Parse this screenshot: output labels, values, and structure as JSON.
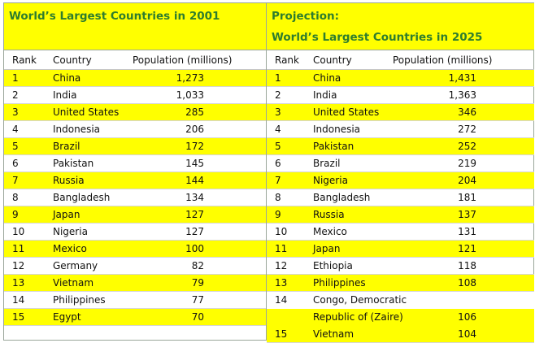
{
  "left": {
    "title": "World’s Largest Countries in 2001",
    "headers": {
      "rank": "Rank",
      "country": "Country",
      "population": "Population (millions)"
    },
    "rows": [
      {
        "rank": "1",
        "country": "China",
        "population": "1,273"
      },
      {
        "rank": "2",
        "country": "India",
        "population": "1,033"
      },
      {
        "rank": "3",
        "country": "United States",
        "population": "285"
      },
      {
        "rank": "4",
        "country": "Indonesia",
        "population": "206"
      },
      {
        "rank": "5",
        "country": "Brazil",
        "population": "172"
      },
      {
        "rank": "6",
        "country": "Pakistan",
        "population": "145"
      },
      {
        "rank": "7",
        "country": "Russia",
        "population": "144"
      },
      {
        "rank": "8",
        "country": "Bangladesh",
        "population": "134"
      },
      {
        "rank": "9",
        "country": "Japan",
        "population": "127"
      },
      {
        "rank": "10",
        "country": "Nigeria",
        "population": "127"
      },
      {
        "rank": "11",
        "country": "Mexico",
        "population": "100"
      },
      {
        "rank": "12",
        "country": "Germany",
        "population": "82"
      },
      {
        "rank": "13",
        "country": "Vietnam",
        "population": "79"
      },
      {
        "rank": "14",
        "country": "Philippines",
        "population": "77"
      },
      {
        "rank": "15",
        "country": "Egypt",
        "population": "70"
      }
    ]
  },
  "right": {
    "title_line1": "Projection:",
    "title_line2": "World’s Largest Countries in 2025",
    "headers": {
      "rank": "Rank",
      "country": "Country",
      "population": "Population (millions)"
    },
    "rows": [
      {
        "rank": "1",
        "country": "China",
        "population": "1,431"
      },
      {
        "rank": "2",
        "country": "India",
        "population": "1,363"
      },
      {
        "rank": "3",
        "country": "United States",
        "population": "346"
      },
      {
        "rank": "4",
        "country": "Indonesia",
        "population": "272"
      },
      {
        "rank": "5",
        "country": "Pakistan",
        "population": "252"
      },
      {
        "rank": "6",
        "country": "Brazil",
        "population": "219"
      },
      {
        "rank": "7",
        "country": "Nigeria",
        "population": "204"
      },
      {
        "rank": "8",
        "country": "Bangladesh",
        "population": "181"
      },
      {
        "rank": "9",
        "country": "Russia",
        "population": "137"
      },
      {
        "rank": "10",
        "country": "Mexico",
        "population": "131"
      },
      {
        "rank": "11",
        "country": "Japan",
        "population": "121"
      },
      {
        "rank": "12",
        "country": "Ethiopia",
        "population": "118"
      },
      {
        "rank": "13",
        "country": "Philippines",
        "population": "108"
      },
      {
        "rank": "14",
        "country": "Congo, Democratic",
        "country_line2": "Republic of (Zaire)",
        "population": "106"
      },
      {
        "rank": "15",
        "country": "Vietnam",
        "population": "104"
      }
    ]
  },
  "colors": {
    "highlight": "#ffff00",
    "title": "#2e7d2e"
  }
}
